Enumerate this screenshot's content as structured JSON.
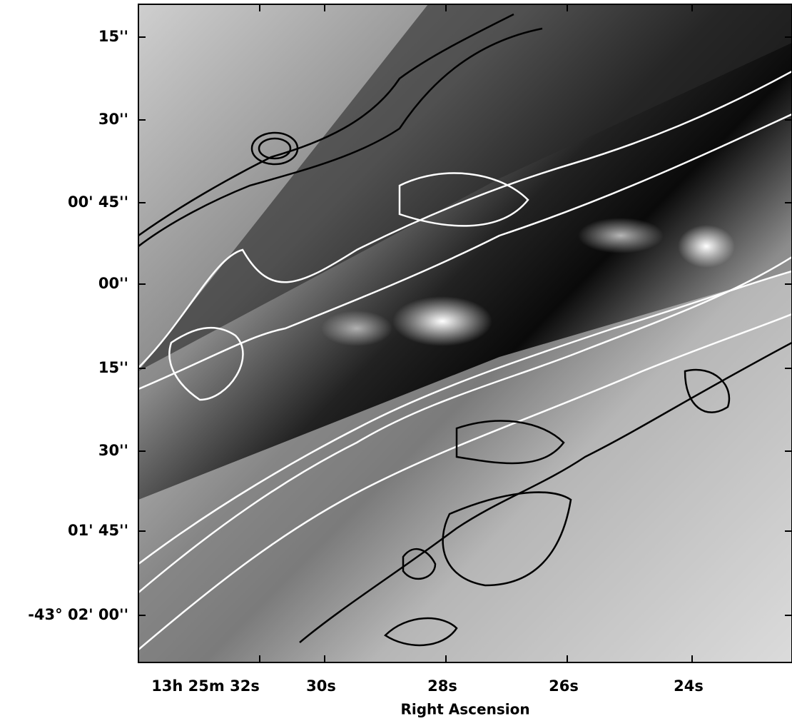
{
  "figure": {
    "y_axis": {
      "ticks": [
        "15''",
        "30''",
        "00' 45''",
        "00''",
        "15''",
        "30''",
        "01' 45''",
        "-43° 02' 00''"
      ]
    },
    "x_axis": {
      "label": "Right Ascension",
      "ticks": [
        "13h 25m 32s",
        "30s",
        "28s",
        "26s",
        "24s"
      ]
    }
  }
}
